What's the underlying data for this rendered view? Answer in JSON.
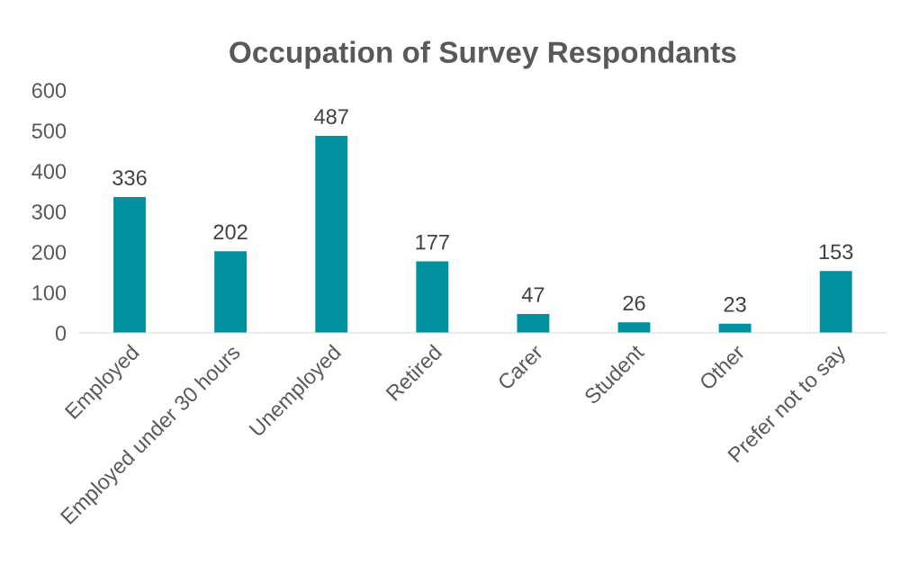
{
  "chart_data": {
    "type": "bar",
    "title": "Occupation of Survey Respondants",
    "categories": [
      "Employed",
      "Employed under 30 hours",
      "Unemployed",
      "Retired",
      "Carer",
      "Student",
      "Other",
      "Prefer not to say"
    ],
    "values": [
      336,
      202,
      487,
      177,
      47,
      26,
      23,
      153
    ],
    "color": "#00909e",
    "ylim": [
      0,
      600
    ],
    "yticks": [
      0,
      100,
      200,
      300,
      400,
      500,
      600
    ],
    "data_labels": true,
    "grid": false,
    "legend": false
  }
}
